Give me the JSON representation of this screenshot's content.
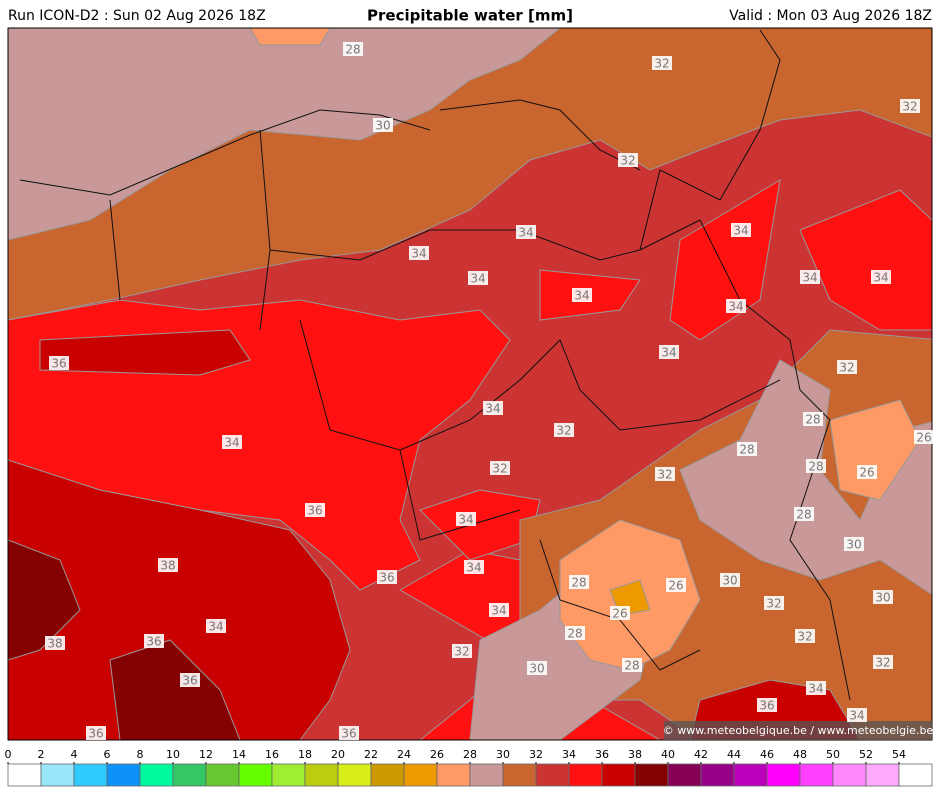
{
  "header": {
    "run": "Run ICON-D2 : Sun 02 Aug 2026 18Z",
    "title": "Precipitable water [mm]",
    "valid": "Valid : Mon 03 Aug 2026 18Z"
  },
  "contour_labels": [
    28,
    30,
    32,
    32,
    32,
    34,
    34,
    34,
    34,
    34,
    34,
    34,
    34,
    36,
    34,
    32,
    34,
    28,
    26,
    34,
    32,
    28,
    28,
    26,
    32,
    32,
    36,
    34,
    28,
    30,
    38,
    36,
    34,
    28,
    26,
    30,
    30,
    32,
    26,
    34,
    34,
    32,
    36,
    38,
    28,
    32,
    28,
    32,
    30,
    36,
    34,
    36,
    34,
    36,
    36
  ],
  "credit": "© www.meteobelgique.be / www.meteobelgie.be",
  "colorbar": {
    "ticks": [
      0,
      2,
      4,
      6,
      8,
      10,
      12,
      14,
      16,
      18,
      20,
      22,
      24,
      26,
      28,
      30,
      32,
      34,
      36,
      38,
      40,
      42,
      44,
      46,
      48,
      50,
      52,
      54
    ],
    "colors": [
      "#ffffff",
      "#99e6fb",
      "#2fcbff",
      "#0d93f7",
      "#00fb9f",
      "#33c865",
      "#66c932",
      "#66ff00",
      "#a0ee33",
      "#bbcc11",
      "#d8ee18",
      "#cc9900",
      "#ee9900",
      "#ff9966",
      "#c99898",
      "#c9652f",
      "#cc3333",
      "#ff1111",
      "#c80000",
      "#850000",
      "#870057",
      "#990088",
      "#bb00bb",
      "#ff00ff",
      "#ff40ff",
      "#ff88ff",
      "#ffaaff",
      "#ffffff"
    ]
  }
}
